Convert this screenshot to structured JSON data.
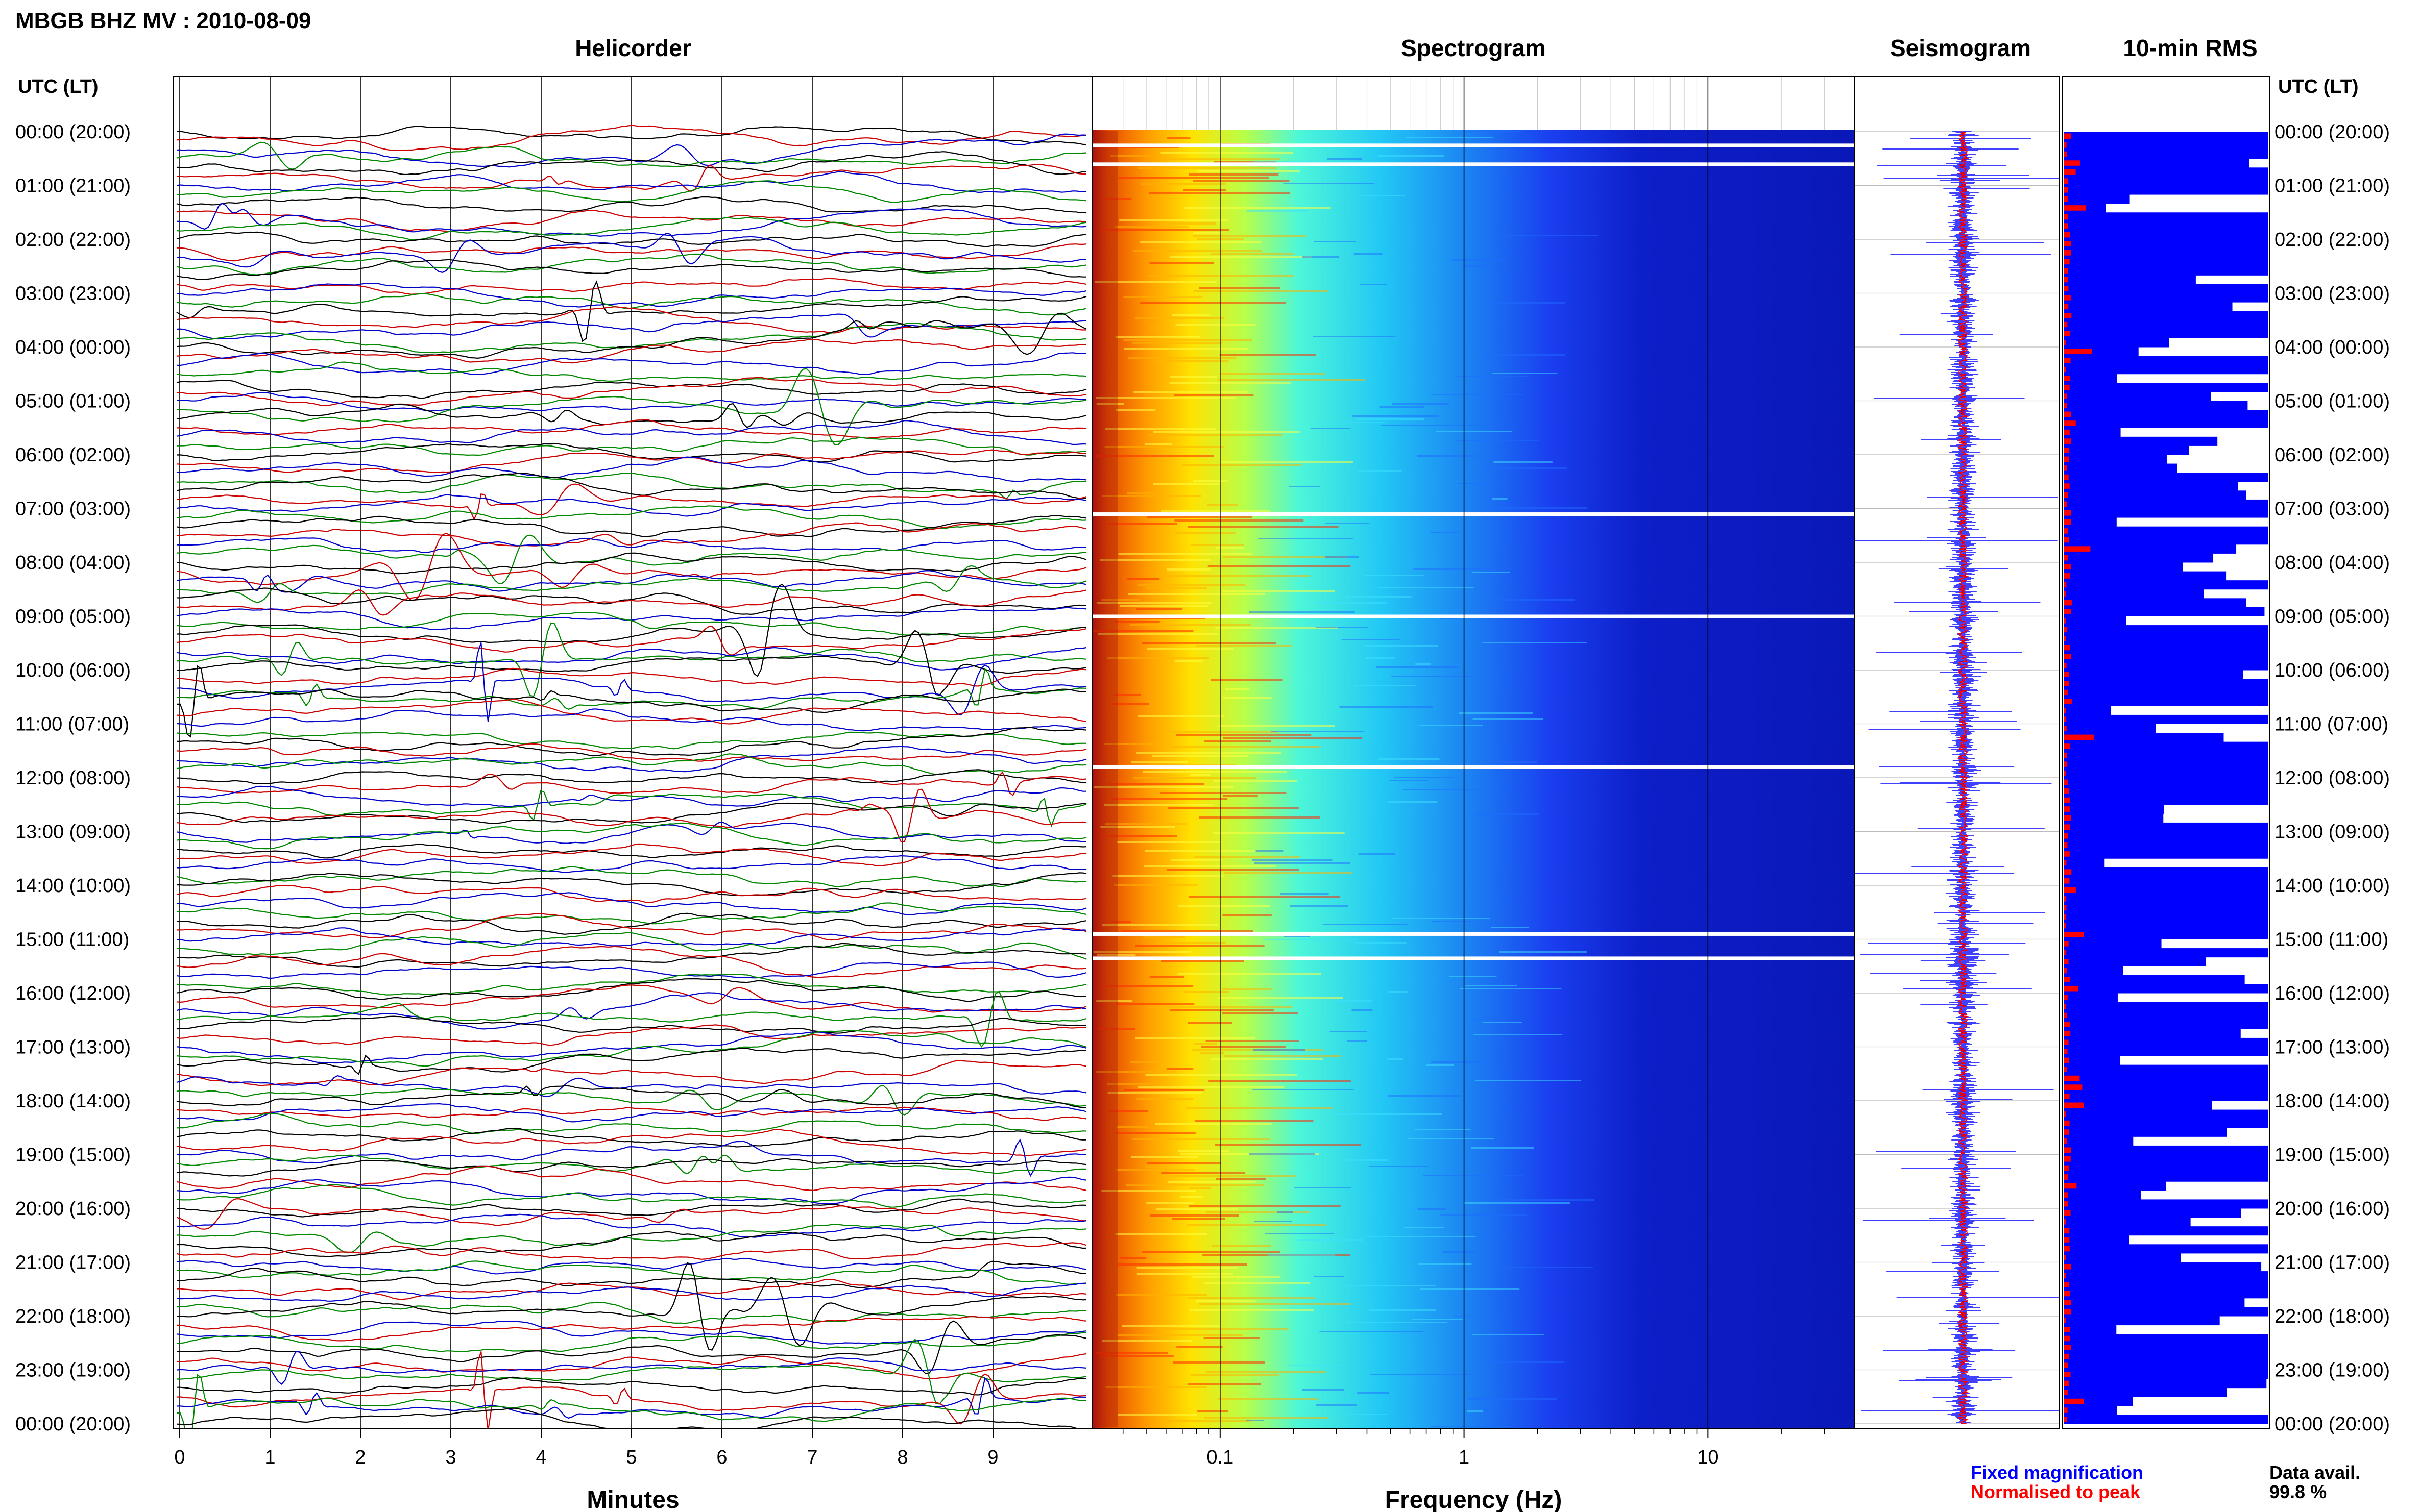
{
  "figure": {
    "title": "MBGB BHZ MV : 2010-08-09",
    "left_axis_label": "UTC (LT)",
    "right_axis_label": "UTC (LT)",
    "hour_labels": [
      "00:00 (20:00)",
      "01:00 (21:00)",
      "02:00 (22:00)",
      "03:00 (23:00)",
      "04:00 (00:00)",
      "05:00 (01:00)",
      "06:00 (02:00)",
      "07:00 (03:00)",
      "08:00 (04:00)",
      "09:00 (05:00)",
      "10:00 (06:00)",
      "11:00 (07:00)",
      "12:00 (08:00)",
      "13:00 (09:00)",
      "14:00 (10:00)",
      "15:00 (11:00)",
      "16:00 (12:00)",
      "17:00 (13:00)",
      "18:00 (14:00)",
      "19:00 (15:00)",
      "20:00 (16:00)",
      "21:00 (17:00)",
      "22:00 (18:00)",
      "23:00 (19:00)",
      "00:00 (20:00)"
    ],
    "trace_colors": [
      "#000000",
      "#cc0000",
      "#0000cc",
      "#008800"
    ]
  },
  "chart_data": [
    {
      "type": "line",
      "title": "Helicorder",
      "xlabel": "Minutes",
      "ylabel": "UTC (LT)",
      "xticks": [
        0,
        1,
        2,
        3,
        4,
        5,
        6,
        7,
        8,
        9
      ],
      "xlim": [
        0,
        10
      ],
      "traces_per_hour": 6,
      "grid": true
    },
    {
      "type": "heatmap",
      "title": "Spectrogram",
      "xlabel": "Frequency (Hz)",
      "xscale": "log",
      "xticks": [
        0.1,
        1,
        10
      ],
      "xtick_labels": [
        "0.1",
        "1",
        "10"
      ],
      "xlim": [
        0.03,
        40
      ],
      "gap_hours": [
        0.25,
        0.6,
        7.1,
        9.0,
        11.8,
        14.9,
        15.35
      ],
      "colormap": [
        "#00008b",
        "#0000ff",
        "#1e90ff",
        "#00e5ff",
        "#7fff7f",
        "#ffff00",
        "#ff8c00",
        "#ff0000",
        "#8b0000"
      ]
    },
    {
      "type": "line",
      "title": "Seismogram",
      "series": [
        {
          "name": "Fixed magnification",
          "color": "#0000ff"
        },
        {
          "name": "Normalised to peak",
          "color": "#ff0000"
        }
      ]
    },
    {
      "type": "bar",
      "title": "10-min RMS",
      "orientation": "horizontal",
      "bin_minutes": 10,
      "series": [
        {
          "name": "Fixed magnification",
          "color": "#0000ff"
        },
        {
          "name": "Normalised to peak",
          "color": "#ff0000"
        }
      ]
    }
  ],
  "legend": {
    "fixed_label": "Fixed magnification",
    "fixed_color": "#0000ff",
    "normalised_label": "Normalised to peak",
    "normalised_color": "#ff0000",
    "data_label": "Data avail.",
    "data_value": "99.8 %"
  }
}
